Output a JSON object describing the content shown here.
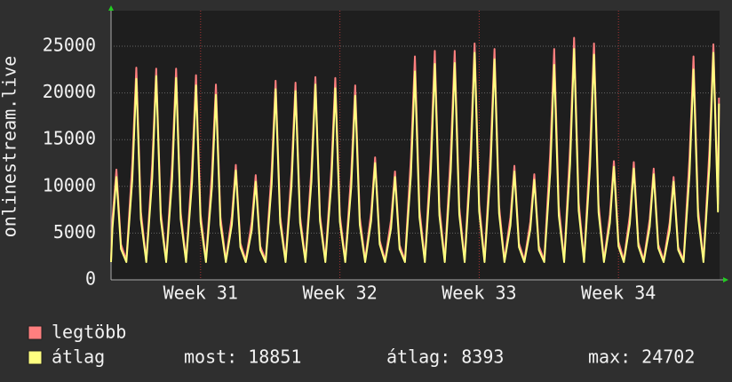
{
  "chart_data": {
    "type": "line",
    "y_label": "onlinestream.live",
    "xlim": [
      0,
      30.58
    ],
    "xticks": [
      {
        "value": 4.5,
        "label": "Week 31"
      },
      {
        "value": 11.5,
        "label": "Week 32"
      },
      {
        "value": 18.5,
        "label": "Week 33"
      },
      {
        "value": 25.5,
        "label": "Week 34"
      }
    ],
    "ylim": [
      0,
      28800
    ],
    "yticks": [
      0,
      5000,
      10000,
      15000,
      20000,
      25000
    ],
    "grid": true,
    "x": [
      0,
      0.07,
      0.27,
      0.5,
      0.77,
      1.07,
      1.27,
      1.5,
      1.77,
      2.07,
      2.27,
      2.5,
      2.77,
      3.07,
      3.27,
      3.5,
      3.77,
      4.07,
      4.27,
      4.5,
      4.77,
      5.07,
      5.27,
      5.5,
      5.77,
      6.07,
      6.27,
      6.5,
      6.77,
      7.07,
      7.27,
      7.5,
      7.77,
      8.07,
      8.27,
      8.5,
      8.77,
      9.07,
      9.27,
      9.5,
      9.77,
      10.07,
      10.27,
      10.5,
      10.77,
      11.07,
      11.27,
      11.5,
      11.77,
      12.07,
      12.27,
      12.5,
      12.77,
      13.07,
      13.27,
      13.5,
      13.77,
      14.07,
      14.27,
      14.5,
      14.77,
      15.07,
      15.27,
      15.5,
      15.77,
      16.07,
      16.27,
      16.5,
      16.77,
      17.07,
      17.27,
      17.5,
      17.77,
      18.07,
      18.27,
      18.5,
      18.77,
      19.07,
      19.27,
      19.5,
      19.77,
      20.07,
      20.27,
      20.5,
      20.77,
      21.07,
      21.27,
      21.5,
      21.77,
      22.07,
      22.27,
      22.5,
      22.77,
      23.07,
      23.27,
      23.5,
      23.77,
      24.07,
      24.27,
      24.5,
      24.77,
      25.07,
      25.27,
      25.5,
      25.77,
      26.07,
      26.27,
      26.5,
      26.77,
      27.07,
      27.27,
      27.5,
      27.77,
      28.07,
      28.27,
      28.5,
      28.77,
      29.07,
      29.27,
      29.5,
      29.77,
      30.07,
      30.27,
      30.5,
      30.55
    ],
    "series": [
      {
        "name": "legtöbb",
        "color": "#ff7f7f",
        "values": [
          2100,
          6500,
          11800,
          3800,
          2100,
          12500,
          22700,
          7300,
          2100,
          12400,
          22600,
          7200,
          2100,
          12400,
          22600,
          7200,
          2100,
          12000,
          21900,
          7000,
          2100,
          11500,
          20900,
          6700,
          2100,
          6800,
          12300,
          3900,
          2100,
          6200,
          11200,
          3600,
          2100,
          11700,
          21300,
          6800,
          2100,
          11600,
          21100,
          6800,
          2100,
          11900,
          21700,
          6900,
          2100,
          11900,
          21600,
          6900,
          2100,
          11400,
          20800,
          6700,
          2100,
          7200,
          13100,
          4200,
          2100,
          6400,
          11600,
          3700,
          2100,
          13100,
          23900,
          7600,
          2100,
          13500,
          24500,
          7800,
          2100,
          13500,
          24500,
          7800,
          2100,
          13900,
          25300,
          8100,
          2100,
          13600,
          24700,
          7900,
          2100,
          6700,
          12200,
          3900,
          2100,
          6200,
          11300,
          3600,
          2100,
          13600,
          24700,
          7900,
          2100,
          14200,
          25900,
          8300,
          2100,
          13900,
          25300,
          8100,
          2100,
          7000,
          12700,
          4100,
          2100,
          6900,
          12600,
          4000,
          2100,
          6500,
          11900,
          3800,
          2100,
          6100,
          11000,
          3500,
          2100,
          13100,
          23900,
          7600,
          2100,
          13900,
          25200,
          8100,
          19500
        ]
      },
      {
        "name": "átlag",
        "color": "#ffff80",
        "values": [
          1900,
          5500,
          11000,
          3300,
          1900,
          10800,
          21500,
          6500,
          1900,
          10900,
          21800,
          6500,
          1900,
          10800,
          21600,
          6500,
          1900,
          10400,
          20800,
          6200,
          1900,
          9900,
          19800,
          5900,
          1900,
          5900,
          11700,
          3500,
          1900,
          5300,
          10500,
          3200,
          1900,
          10200,
          20400,
          6100,
          1900,
          10100,
          20200,
          6100,
          1900,
          10500,
          20900,
          6300,
          1900,
          10300,
          20500,
          6200,
          1900,
          9900,
          19700,
          5900,
          1900,
          6300,
          12500,
          3800,
          1900,
          5500,
          11000,
          3300,
          1900,
          11200,
          22300,
          6700,
          1900,
          11600,
          23100,
          6900,
          1900,
          11600,
          23200,
          7000,
          1900,
          12200,
          24300,
          7300,
          1900,
          11800,
          23600,
          7100,
          1900,
          5800,
          11600,
          3500,
          1900,
          5400,
          10700,
          3200,
          1900,
          11500,
          23000,
          6900,
          1900,
          12400,
          24700,
          7400,
          1900,
          12100,
          24100,
          7200,
          1900,
          6100,
          12100,
          3600,
          1900,
          6000,
          11900,
          3600,
          1900,
          5700,
          11300,
          3400,
          1900,
          5300,
          10500,
          3200,
          1900,
          11300,
          22500,
          6800,
          1900,
          12200,
          24300,
          7300,
          18851
        ]
      }
    ],
    "summary": [
      {
        "label": "most:",
        "value": 18851
      },
      {
        "label": "átlag:",
        "value": 8393
      },
      {
        "label": "max:",
        "value": 24702
      }
    ]
  }
}
